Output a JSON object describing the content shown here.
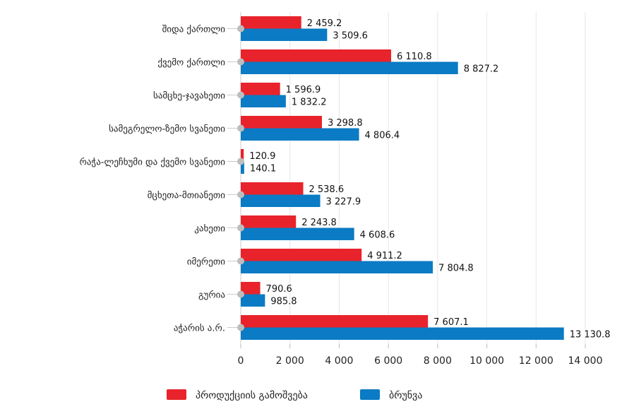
{
  "chart_data": {
    "type": "bar",
    "orientation": "horizontal",
    "categories": [
      "შიდა ქართლი",
      "ქვემო ქართლი",
      "სამცხე-ჯავახეთი",
      "სამეგრელო-ზემო სვანეთი",
      "რაჭა-ლეჩხუმი და ქვემო სვანეთი",
      "მცხეთა-მთიანეთი",
      "კახეთი",
      "იმერეთი",
      "გურია",
      "აჭარის ა.რ."
    ],
    "series": [
      {
        "name": "პროდუქციის გამოშვება",
        "color": "#e8232b",
        "values": [
          2459.2,
          6110.8,
          1596.9,
          3298.8,
          120.9,
          2538.6,
          2243.8,
          4911.2,
          790.6,
          7607.1
        ],
        "labels": [
          "2 459.2",
          "6 110.8",
          "1 596.9",
          "3 298.8",
          "120.9",
          "2 538.6",
          "2 243.8",
          "4 911.2",
          "790.6",
          "7 607.1"
        ]
      },
      {
        "name": "ბრუნვა",
        "color": "#0a7bc4",
        "values": [
          3509.6,
          8827.2,
          1832.2,
          4806.4,
          140.1,
          3227.9,
          4608.6,
          7804.8,
          985.8,
          13130.8
        ],
        "labels": [
          "3 509.6",
          "8 827.2",
          "1 832.2",
          "4 806.4",
          "140.1",
          "3 227.9",
          "4 608.6",
          "7 804.8",
          "985.8",
          "13 130.8"
        ]
      }
    ],
    "xlim": [
      0,
      14000
    ],
    "xticks": [
      0,
      2000,
      4000,
      6000,
      8000,
      10000,
      12000,
      14000
    ],
    "xtick_labels": [
      "0",
      "2 000",
      "4 000",
      "6 000",
      "8 000",
      "10 000",
      "12 000",
      "14 000"
    ],
    "grid": true,
    "legend": "bottom",
    "title": "",
    "xlabel": "",
    "ylabel": ""
  }
}
